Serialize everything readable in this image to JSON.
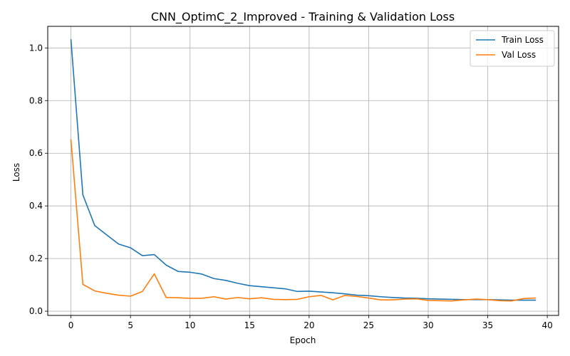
{
  "chart_data": {
    "type": "line",
    "title": "CNN_OptimC_2_Improved - Training & Validation Loss",
    "xlabel": "Epoch",
    "ylabel": "Loss",
    "xlim": [
      -1.95,
      40.95
    ],
    "ylim": [
      -0.016,
      1.082
    ],
    "xticks": [
      0,
      5,
      10,
      15,
      20,
      25,
      30,
      35,
      40
    ],
    "xtick_labels": [
      "0",
      "5",
      "10",
      "15",
      "20",
      "25",
      "30",
      "35",
      "40"
    ],
    "yticks": [
      0.0,
      0.2,
      0.4,
      0.6,
      0.8,
      1.0
    ],
    "ytick_labels": [
      "0.0",
      "0.2",
      "0.4",
      "0.6",
      "0.8",
      "1.0"
    ],
    "grid": true,
    "legend_position": "top-right",
    "x": [
      0,
      1,
      2,
      3,
      4,
      5,
      6,
      7,
      8,
      9,
      10,
      11,
      12,
      13,
      14,
      15,
      16,
      17,
      18,
      19,
      20,
      21,
      22,
      23,
      24,
      25,
      26,
      27,
      28,
      29,
      30,
      31,
      32,
      33,
      34,
      35,
      36,
      37,
      38,
      39
    ],
    "series": [
      {
        "name": "Train Loss",
        "color": "#1f77b4",
        "values": [
          1.031,
          0.442,
          0.325,
          0.29,
          0.255,
          0.241,
          0.211,
          0.215,
          0.175,
          0.151,
          0.148,
          0.141,
          0.124,
          0.117,
          0.106,
          0.097,
          0.093,
          0.089,
          0.085,
          0.075,
          0.076,
          0.073,
          0.07,
          0.066,
          0.061,
          0.059,
          0.055,
          0.052,
          0.05,
          0.049,
          0.047,
          0.046,
          0.045,
          0.044,
          0.044,
          0.044,
          0.043,
          0.042,
          0.042,
          0.042
        ]
      },
      {
        "name": "Val Loss",
        "color": "#ff7f0e",
        "values": [
          0.651,
          0.102,
          0.077,
          0.068,
          0.061,
          0.057,
          0.075,
          0.142,
          0.052,
          0.051,
          0.049,
          0.049,
          0.055,
          0.046,
          0.052,
          0.047,
          0.051,
          0.045,
          0.044,
          0.045,
          0.055,
          0.06,
          0.043,
          0.06,
          0.056,
          0.05,
          0.043,
          0.043,
          0.046,
          0.047,
          0.041,
          0.04,
          0.039,
          0.043,
          0.046,
          0.044,
          0.04,
          0.039,
          0.048,
          0.05
        ]
      }
    ]
  }
}
